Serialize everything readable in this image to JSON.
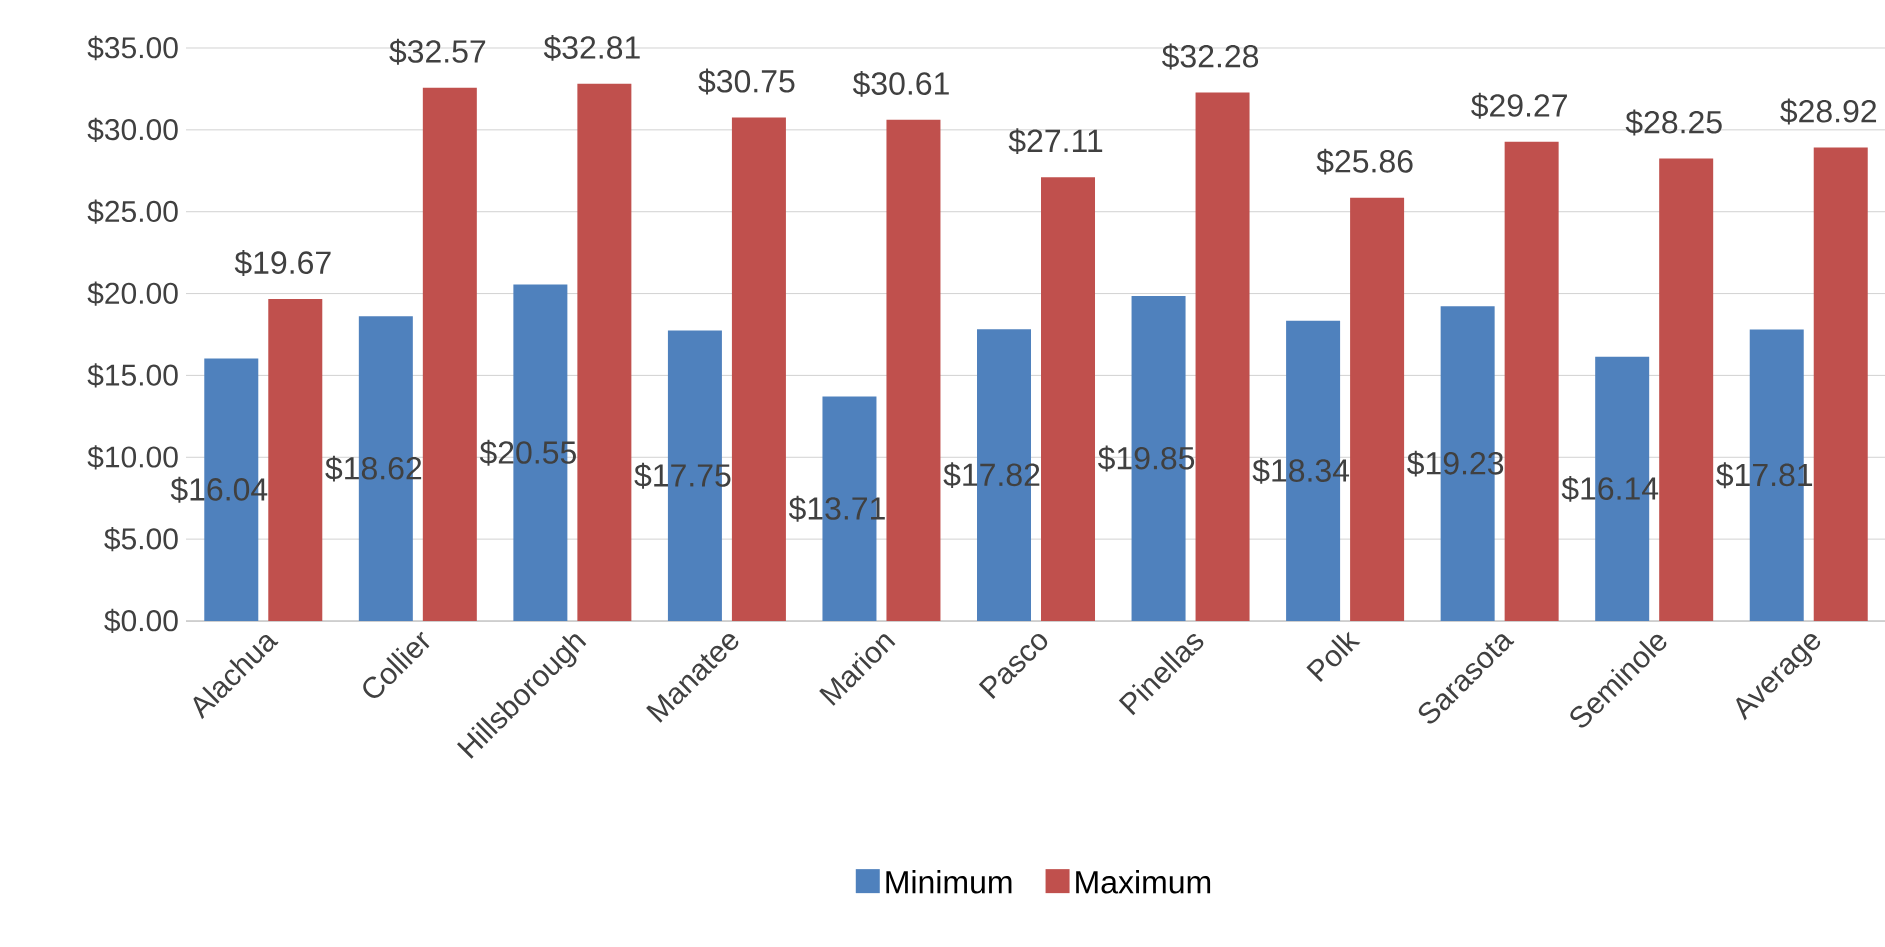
{
  "chart_data": {
    "type": "bar",
    "categories": [
      "Alachua",
      "Collier",
      "Hillsborough",
      "Manatee",
      "Marion",
      "Pasco",
      "Pinellas",
      "Polk",
      "Sarasota",
      "Seminole",
      "Average"
    ],
    "series": [
      {
        "name": "Minimum",
        "color": "#4f81bd",
        "values": [
          16.04,
          18.62,
          20.55,
          17.75,
          13.71,
          17.82,
          19.85,
          18.34,
          19.23,
          16.14,
          17.81
        ],
        "value_labels": [
          "$16.04",
          "$18.62",
          "$20.55",
          "$17.75",
          "$13.71",
          "$17.82",
          "$19.85",
          "$18.34",
          "$19.23",
          "$16.14",
          "$17.81"
        ]
      },
      {
        "name": "Maximum",
        "color": "#c0504d",
        "values": [
          19.67,
          32.57,
          32.81,
          30.75,
          30.61,
          27.11,
          32.28,
          25.86,
          29.27,
          28.25,
          28.92
        ],
        "value_labels": [
          "$19.67",
          "$32.57",
          "$32.81",
          "$30.75",
          "$30.61",
          "$27.11",
          "$32.28",
          "$25.86",
          "$29.27",
          "$28.25",
          "$28.92"
        ]
      }
    ],
    "ylim": [
      0,
      35
    ],
    "yticks": [
      {
        "value": 0,
        "label": "$0.00"
      },
      {
        "value": 5,
        "label": "$5.00"
      },
      {
        "value": 10,
        "label": "$10.00"
      },
      {
        "value": 15,
        "label": "$15.00"
      },
      {
        "value": 20,
        "label": "$20.00"
      },
      {
        "value": 25,
        "label": "$25.00"
      },
      {
        "value": 30,
        "label": "$30.00"
      },
      {
        "value": 35,
        "label": "$35.00"
      }
    ],
    "grid": "y",
    "legend": "bottom"
  }
}
